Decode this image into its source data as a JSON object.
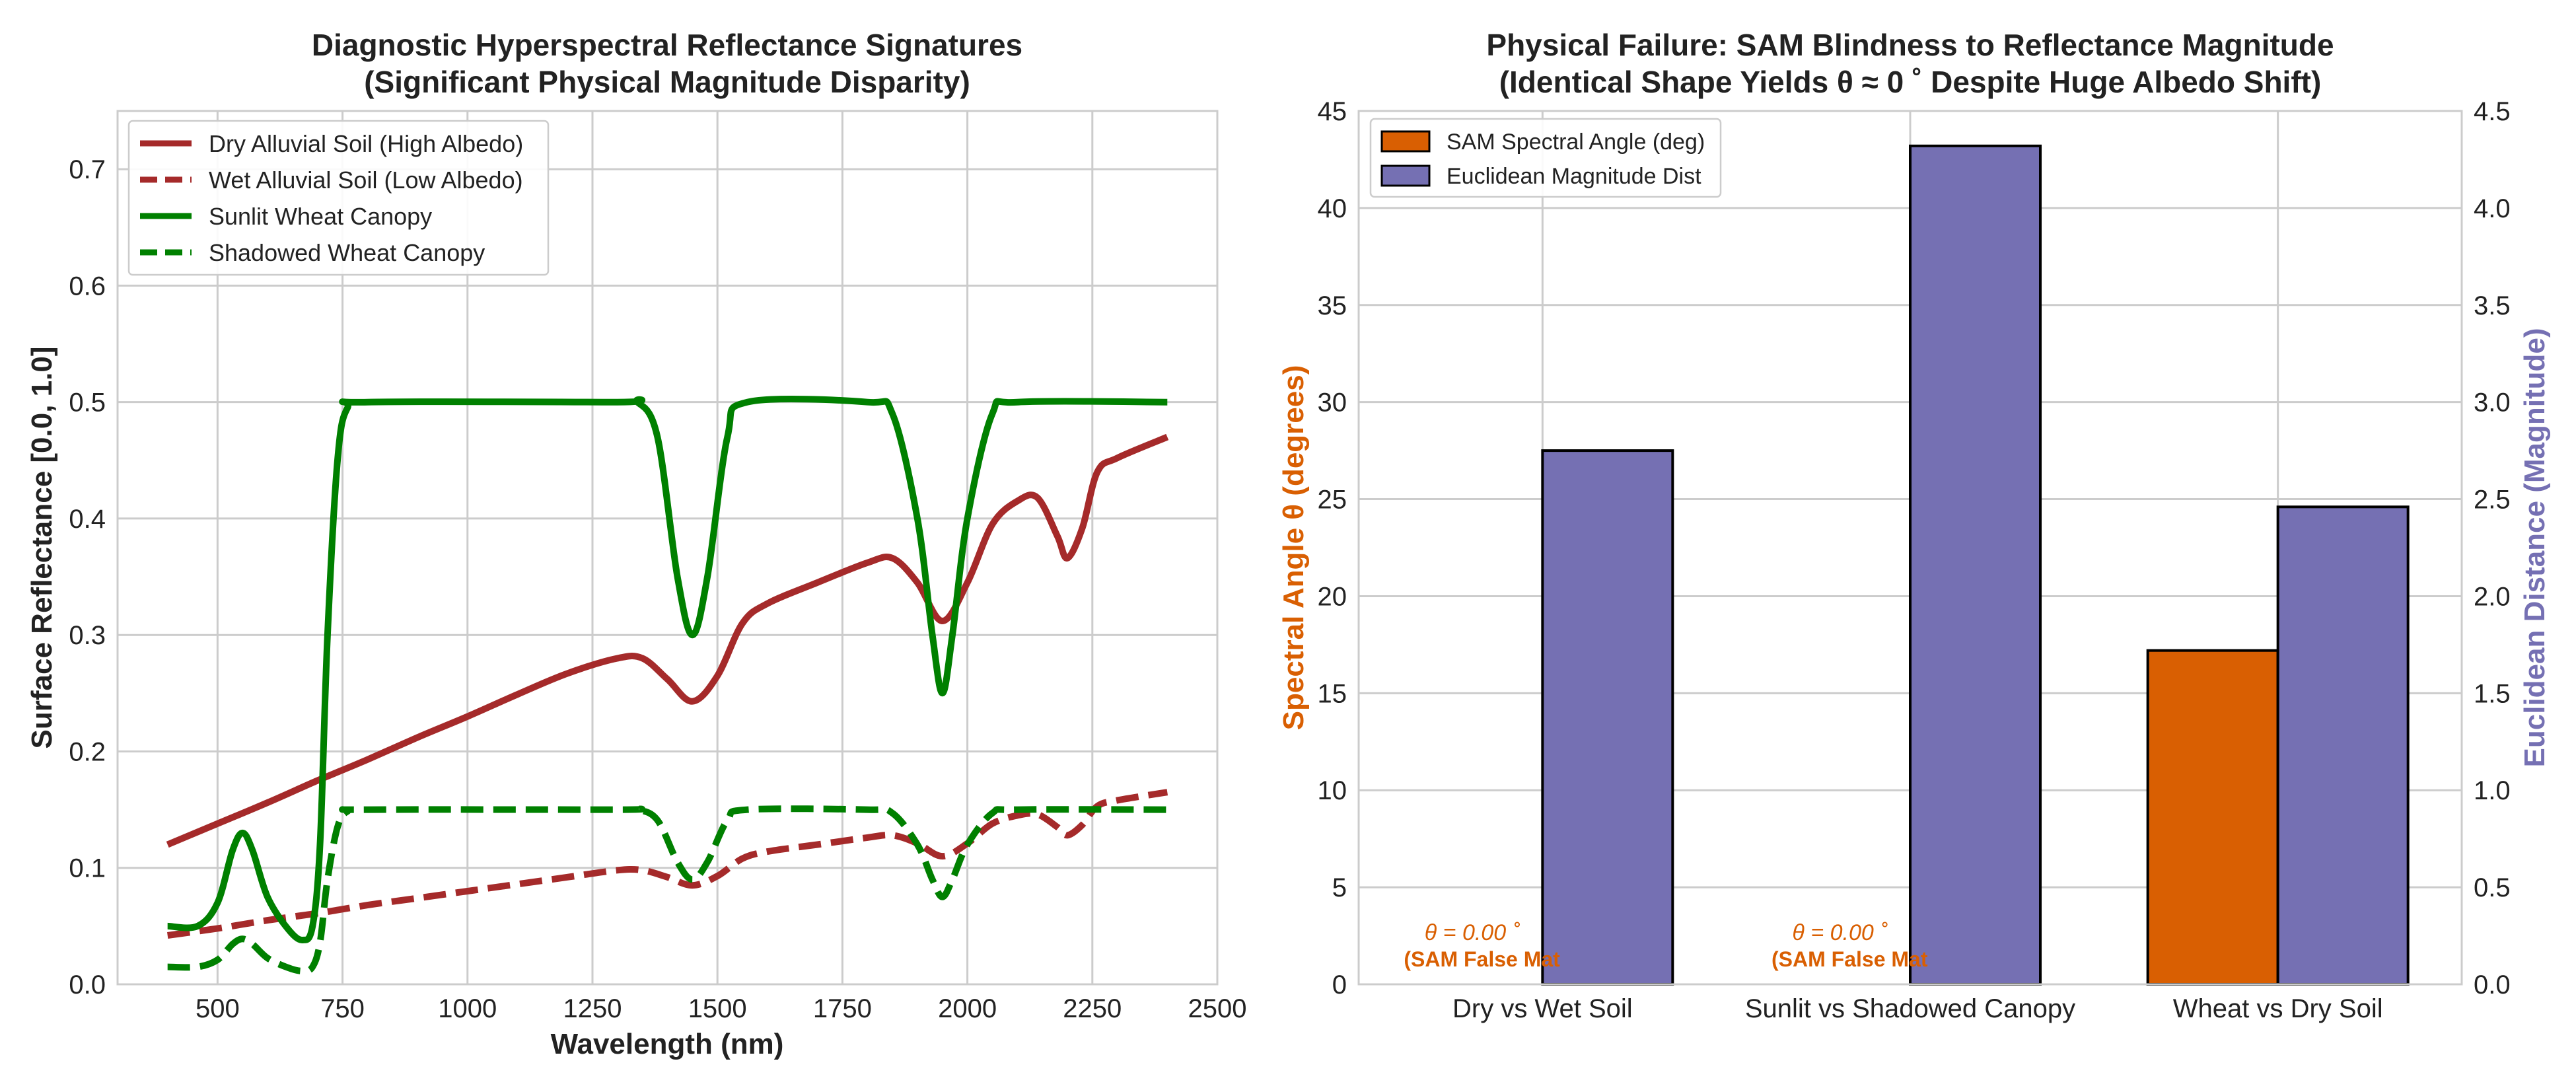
{
  "chart_data": [
    {
      "type": "line",
      "title": "Diagnostic Hyperspectral Reflectance Signatures",
      "subtitle": "(Significant Physical Magnitude Disparity)",
      "xlabel": "Wavelength (nm)",
      "ylabel": "Surface Reflectance [0.0, 1.0]",
      "xlim": [
        300,
        2500
      ],
      "ylim": [
        0.0,
        0.75
      ],
      "xticks": [
        "500",
        "750",
        "1000",
        "1250",
        "1500",
        "1750",
        "2000",
        "2250",
        "2500"
      ],
      "yticks": [
        "0.0",
        "0.1",
        "0.2",
        "0.3",
        "0.4",
        "0.5",
        "0.6",
        "0.7"
      ],
      "grid": true,
      "legend_position": "top-left",
      "series": [
        {
          "name": "Dry Alluvial Soil (High Albedo)",
          "color": "#A52A2A",
          "dash": "solid",
          "points": [
            [
              400,
              0.12
            ],
            [
              500,
              0.138
            ],
            [
              600,
              0.156
            ],
            [
              700,
              0.175
            ],
            [
              800,
              0.193
            ],
            [
              900,
              0.212
            ],
            [
              1000,
              0.23
            ],
            [
              1100,
              0.249
            ],
            [
              1200,
              0.267
            ],
            [
              1300,
              0.28
            ],
            [
              1350,
              0.28
            ],
            [
              1400,
              0.262
            ],
            [
              1450,
              0.243
            ],
            [
              1500,
              0.265
            ],
            [
              1550,
              0.31
            ],
            [
              1600,
              0.327
            ],
            [
              1700,
              0.345
            ],
            [
              1800,
              0.362
            ],
            [
              1850,
              0.366
            ],
            [
              1900,
              0.345
            ],
            [
              1950,
              0.312
            ],
            [
              2000,
              0.345
            ],
            [
              2050,
              0.395
            ],
            [
              2100,
              0.415
            ],
            [
              2140,
              0.418
            ],
            [
              2180,
              0.385
            ],
            [
              2200,
              0.366
            ],
            [
              2230,
              0.392
            ],
            [
              2260,
              0.44
            ],
            [
              2300,
              0.452
            ],
            [
              2400,
              0.47
            ]
          ]
        },
        {
          "name": "Wet Alluvial Soil (Low Albedo)",
          "color": "#A52A2A",
          "dash": "dashed",
          "points": [
            [
              400,
              0.042
            ],
            [
              500,
              0.048
            ],
            [
              600,
              0.055
            ],
            [
              700,
              0.061
            ],
            [
              800,
              0.068
            ],
            [
              900,
              0.074
            ],
            [
              1000,
              0.08
            ],
            [
              1100,
              0.086
            ],
            [
              1200,
              0.092
            ],
            [
              1300,
              0.098
            ],
            [
              1350,
              0.098
            ],
            [
              1400,
              0.092
            ],
            [
              1450,
              0.085
            ],
            [
              1500,
              0.093
            ],
            [
              1550,
              0.108
            ],
            [
              1600,
              0.114
            ],
            [
              1700,
              0.12
            ],
            [
              1800,
              0.126
            ],
            [
              1850,
              0.128
            ],
            [
              1900,
              0.121
            ],
            [
              1950,
              0.11
            ],
            [
              2000,
              0.121
            ],
            [
              2050,
              0.138
            ],
            [
              2100,
              0.145
            ],
            [
              2140,
              0.146
            ],
            [
              2180,
              0.135
            ],
            [
              2200,
              0.128
            ],
            [
              2230,
              0.137
            ],
            [
              2260,
              0.153
            ],
            [
              2300,
              0.158
            ],
            [
              2400,
              0.165
            ]
          ]
        },
        {
          "name": "Sunlit Wheat Canopy",
          "color": "#008000",
          "dash": "solid",
          "points": [
            [
              400,
              0.05
            ],
            [
              460,
              0.05
            ],
            [
              500,
              0.07
            ],
            [
              530,
              0.115
            ],
            [
              550,
              0.13
            ],
            [
              570,
              0.115
            ],
            [
              600,
              0.075
            ],
            [
              640,
              0.048
            ],
            [
              670,
              0.038
            ],
            [
              690,
              0.05
            ],
            [
              705,
              0.12
            ],
            [
              720,
              0.3
            ],
            [
              740,
              0.45
            ],
            [
              760,
              0.495
            ],
            [
              800,
              0.5
            ],
            [
              1300,
              0.5
            ],
            [
              1340,
              0.5
            ],
            [
              1380,
              0.47
            ],
            [
              1420,
              0.35
            ],
            [
              1450,
              0.3
            ],
            [
              1480,
              0.35
            ],
            [
              1520,
              0.47
            ],
            [
              1560,
              0.5
            ],
            [
              1800,
              0.5
            ],
            [
              1850,
              0.49
            ],
            [
              1900,
              0.4
            ],
            [
              1930,
              0.3
            ],
            [
              1950,
              0.25
            ],
            [
              1970,
              0.3
            ],
            [
              2000,
              0.4
            ],
            [
              2050,
              0.49
            ],
            [
              2100,
              0.5
            ],
            [
              2400,
              0.5
            ]
          ]
        },
        {
          "name": "Shadowed Wheat Canopy",
          "color": "#008000",
          "dash": "dashed",
          "points": [
            [
              400,
              0.015
            ],
            [
              460,
              0.015
            ],
            [
              500,
              0.021
            ],
            [
              530,
              0.0345
            ],
            [
              550,
              0.039
            ],
            [
              570,
              0.0345
            ],
            [
              600,
              0.0225
            ],
            [
              640,
              0.0144
            ],
            [
              670,
              0.0114
            ],
            [
              690,
              0.015
            ],
            [
              705,
              0.036
            ],
            [
              720,
              0.09
            ],
            [
              740,
              0.135
            ],
            [
              760,
              0.1485
            ],
            [
              800,
              0.15
            ],
            [
              1300,
              0.15
            ],
            [
              1340,
              0.15
            ],
            [
              1380,
              0.141
            ],
            [
              1420,
              0.105
            ],
            [
              1450,
              0.09
            ],
            [
              1480,
              0.105
            ],
            [
              1520,
              0.141
            ],
            [
              1560,
              0.15
            ],
            [
              1800,
              0.15
            ],
            [
              1850,
              0.147
            ],
            [
              1900,
              0.12
            ],
            [
              1930,
              0.09
            ],
            [
              1950,
              0.075
            ],
            [
              1970,
              0.09
            ],
            [
              2000,
              0.12
            ],
            [
              2050,
              0.147
            ],
            [
              2100,
              0.15
            ],
            [
              2400,
              0.15
            ]
          ]
        }
      ]
    },
    {
      "type": "bar",
      "title": "Physical Failure: SAM Blindness to Reflectance Magnitude",
      "subtitle": "(Identical Shape Yields θ ≈ 0 ˚ Despite Huge Albedo Shift)",
      "ylabel_left": "Spectral Angle θ (degrees)",
      "ylabel_right": "Euclidean Distance (Magnitude)",
      "categories": [
        "Dry vs Wet Soil",
        "Sunlit vs Shadowed Canopy",
        "Wheat vs Dry Soil"
      ],
      "ylim_left": [
        0,
        45
      ],
      "ylim_right": [
        0,
        4.5
      ],
      "yticks_left": [
        "0",
        "5",
        "10",
        "15",
        "20",
        "25",
        "30",
        "35",
        "40",
        "45"
      ],
      "yticks_right": [
        "0.0",
        "0.5",
        "1.0",
        "1.5",
        "2.0",
        "2.5",
        "3.0",
        "3.5",
        "4.0",
        "4.5"
      ],
      "grid": true,
      "legend_position": "top-left",
      "series": [
        {
          "name": "SAM Spectral Angle (deg)",
          "axis": "left",
          "color": "#D95F02",
          "values": [
            0.0,
            0.0,
            17.2
          ]
        },
        {
          "name": "Euclidean Magnitude Dist",
          "axis": "right",
          "color": "#7570B3",
          "values": [
            2.75,
            4.32,
            2.46
          ]
        }
      ],
      "annotations": [
        {
          "category": "Dry vs Wet Soil",
          "line1": "θ = 0.00 ˚",
          "line2": "(SAM False Mat"
        },
        {
          "category": "Sunlit vs Shadowed Canopy",
          "line1": "θ = 0.00 ˚",
          "line2": "(SAM False Mat"
        }
      ]
    }
  ]
}
